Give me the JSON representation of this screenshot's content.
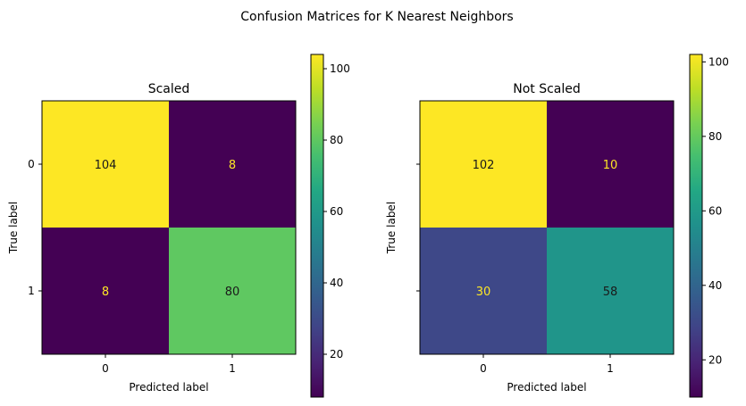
{
  "figure": {
    "suptitle": "Confusion Matrices for K Nearest Neighbors"
  },
  "chart_data": [
    {
      "type": "heatmap",
      "title": "Scaled",
      "xlabel": "Predicted label",
      "ylabel": "True label",
      "x_categories": [
        "0",
        "1"
      ],
      "y_categories": [
        "0",
        "1"
      ],
      "matrix": [
        [
          104,
          8
        ],
        [
          8,
          80
        ]
      ],
      "colormap": "viridis",
      "colorbar": {
        "min": 8,
        "max": 104,
        "ticks": [
          20,
          40,
          60,
          80,
          100
        ]
      }
    },
    {
      "type": "heatmap",
      "title": "Not Scaled",
      "xlabel": "Predicted label",
      "ylabel": "True label",
      "x_categories": [
        "0",
        "1"
      ],
      "y_categories": [
        "0",
        "1"
      ],
      "matrix": [
        [
          102,
          10
        ],
        [
          30,
          58
        ]
      ],
      "colormap": "viridis",
      "colorbar": {
        "min": 10,
        "max": 102,
        "ticks": [
          20,
          40,
          60,
          80,
          100
        ]
      }
    }
  ]
}
